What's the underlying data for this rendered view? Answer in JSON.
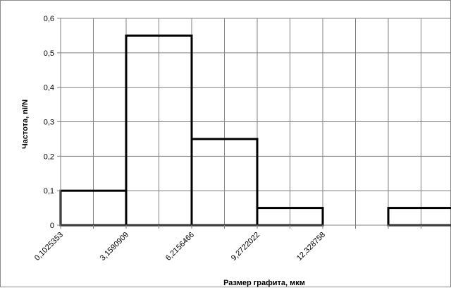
{
  "chart_data": {
    "type": "bar",
    "title": "",
    "xlabel": "Размер графита, мкм",
    "ylabel": "Частота, ni/N",
    "ylim": [
      0,
      0.6
    ],
    "yticks": [
      0,
      0.1,
      0.2,
      0.3,
      0.4,
      0.5,
      0.6
    ],
    "ytick_labels": [
      "0",
      "0,1",
      "0,2",
      "0,3",
      "0,4",
      "0,5",
      "0,6"
    ],
    "x_tick_labels": [
      "0,1025353",
      "3,1590909",
      "6,2156466",
      "9,2722022",
      "12,328758"
    ],
    "x_tick_values": [
      0.1025353,
      3.1590909,
      6.2156466,
      9.2722022,
      12.328758
    ],
    "bin_width": 3.0565556,
    "bins": [
      {
        "x0": 0.1025353,
        "x1": 3.1590909,
        "value": 0.1
      },
      {
        "x0": 3.1590909,
        "x1": 6.2156466,
        "value": 0.55
      },
      {
        "x0": 6.2156466,
        "x1": 9.2722022,
        "value": 0.25
      },
      {
        "x0": 9.2722022,
        "x1": 12.328758,
        "value": 0.05
      },
      {
        "x0": 12.328758,
        "x1": 15.3853136,
        "value": 0
      },
      {
        "x0": 15.3853136,
        "x1": 18.4418692,
        "value": 0.05
      }
    ],
    "grid": true,
    "legend": "none",
    "colors": {
      "bar_edge": "#000000",
      "bar_fill": "#ffffff",
      "grid": "#808080"
    }
  }
}
